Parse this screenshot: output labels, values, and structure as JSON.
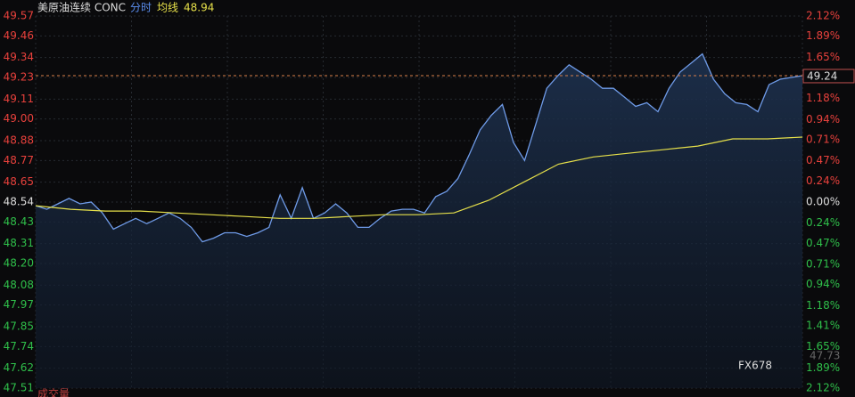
{
  "chart_data": {
    "type": "line",
    "title": "美原油连续 CONC",
    "subtitle": "分时",
    "avg_label": "均线",
    "avg_value": "48.94",
    "last_label": {
      "value": 49.24,
      "label": "49.24"
    },
    "bottom_label": "成交量",
    "overlay_label": "47.73",
    "watermark": "FX678",
    "ylim": [
      47.51,
      49.57
    ],
    "yticks": [
      {
        "value": 49.57,
        "label": "49.57"
      },
      {
        "value": 49.46,
        "label": "49.46"
      },
      {
        "value": 49.34,
        "label": "49.34"
      },
      {
        "value": 49.23,
        "label": "49.23"
      },
      {
        "value": 49.11,
        "label": "49.11"
      },
      {
        "value": 49.0,
        "label": "49.00"
      },
      {
        "value": 48.88,
        "label": "48.88"
      },
      {
        "value": 48.77,
        "label": "48.77"
      },
      {
        "value": 48.65,
        "label": "48.65"
      },
      {
        "value": 48.54,
        "label": "48.54"
      },
      {
        "value": 48.43,
        "label": "48.43"
      },
      {
        "value": 48.31,
        "label": "48.31"
      },
      {
        "value": 48.2,
        "label": "48.20"
      },
      {
        "value": 48.08,
        "label": "48.08"
      },
      {
        "value": 47.97,
        "label": "47.97"
      },
      {
        "value": 47.85,
        "label": "47.85"
      },
      {
        "value": 47.74,
        "label": "47.74"
      },
      {
        "value": 47.62,
        "label": "47.62"
      },
      {
        "value": 47.51,
        "label": "47.51"
      }
    ],
    "y2lim": [
      -2.12,
      2.12
    ],
    "y2ticks": [
      {
        "value": 2.12,
        "label": "2.12%"
      },
      {
        "value": 1.89,
        "label": "1.89%"
      },
      {
        "value": 1.65,
        "label": "1.65%"
      },
      {
        "value": 1.41,
        "label": "1.41%"
      },
      {
        "value": 1.18,
        "label": "1.18%"
      },
      {
        "value": 0.94,
        "label": "0.94%"
      },
      {
        "value": 0.71,
        "label": "0.71%"
      },
      {
        "value": 0.47,
        "label": "0.47%"
      },
      {
        "value": 0.24,
        "label": "0.24%"
      },
      {
        "value": 0,
        "label": "0.00%"
      },
      {
        "value": -0.24,
        "label": "0.24%"
      },
      {
        "value": -0.47,
        "label": "0.47%"
      },
      {
        "value": -0.71,
        "label": "0.71%"
      },
      {
        "value": -0.94,
        "label": "0.94%"
      },
      {
        "value": -1.18,
        "label": "1.18%"
      },
      {
        "value": -1.41,
        "label": "1.41%"
      },
      {
        "value": -1.65,
        "label": "1.65%"
      },
      {
        "value": -1.89,
        "label": "1.89%"
      },
      {
        "value": -2.12,
        "label": "2.12%"
      }
    ],
    "grid": true,
    "series": [
      {
        "name": "分时",
        "color": "#6f9be8",
        "values": [
          48.52,
          48.5,
          48.53,
          48.56,
          48.53,
          48.54,
          48.48,
          48.39,
          48.42,
          48.45,
          48.42,
          48.45,
          48.48,
          48.45,
          48.4,
          48.32,
          48.34,
          48.37,
          48.37,
          48.35,
          48.37,
          48.4,
          48.58,
          48.45,
          48.62,
          48.45,
          48.48,
          48.53,
          48.48,
          48.4,
          48.4,
          48.45,
          48.49,
          48.5,
          48.5,
          48.48,
          48.57,
          48.6,
          48.67,
          48.8,
          48.94,
          49.02,
          49.08,
          48.87,
          48.77,
          48.97,
          49.17,
          49.24,
          49.3,
          49.26,
          49.22,
          49.17,
          49.17,
          49.12,
          49.07,
          49.09,
          49.04,
          49.17,
          49.26,
          49.31,
          49.36,
          49.22,
          49.14,
          49.09,
          49.08,
          49.04,
          49.19,
          49.22,
          49.23,
          49.24
        ]
      },
      {
        "name": "均线",
        "color": "#e6e04a",
        "values": [
          48.52,
          48.5,
          48.49,
          48.49,
          48.48,
          48.47,
          48.46,
          48.45,
          48.45,
          48.46,
          48.47,
          48.47,
          48.48,
          48.55,
          48.65,
          48.75,
          48.79,
          48.81,
          48.83,
          48.85,
          48.89,
          48.89,
          48.9
        ]
      }
    ]
  }
}
